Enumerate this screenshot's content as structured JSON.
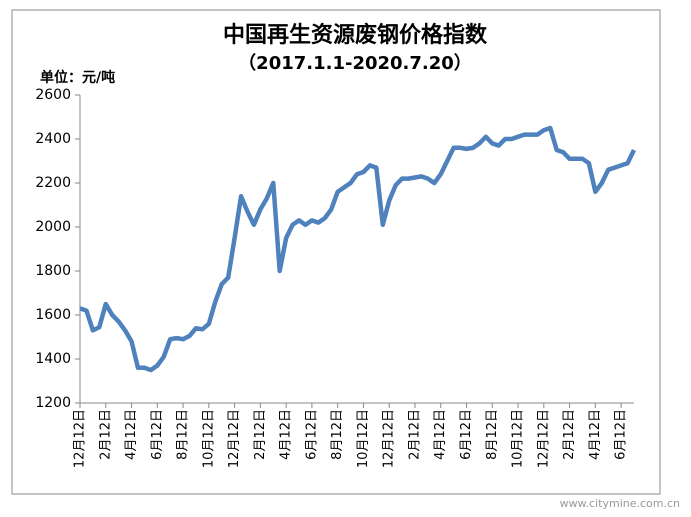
{
  "chart_data": {
    "type": "line",
    "title": "中国再生资源废钢价格指数",
    "subtitle": "（2017.1.1-2020.7.20）",
    "y_label": "单位：元/吨",
    "watermark": "www.citymine.com.cn",
    "categories": [
      "12月12日",
      null,
      null,
      null,
      "2月12日",
      null,
      null,
      null,
      "4月12日",
      null,
      null,
      null,
      "6月12日",
      null,
      null,
      null,
      "8月12日",
      null,
      null,
      null,
      "10月12日",
      null,
      null,
      null,
      "12月12日",
      null,
      null,
      null,
      "2月12日",
      null,
      null,
      null,
      "4月12日",
      null,
      null,
      null,
      "6月12日",
      null,
      null,
      null,
      "8月12日",
      null,
      null,
      null,
      "10月12日",
      null,
      null,
      null,
      "12月12日",
      null,
      null,
      null,
      "2月12日",
      null,
      null,
      null,
      "4月12日",
      null,
      null,
      null,
      "6月12日",
      null,
      null,
      null,
      "8月12日",
      null,
      null,
      null,
      "10月12日",
      null,
      null,
      null,
      "12月12日",
      null,
      null,
      null,
      "2月12日",
      null,
      null,
      null,
      "4月12日",
      null,
      null,
      null,
      "6月12日",
      null,
      null
    ],
    "series": [
      {
        "name": "废钢价格指数",
        "color": "#4f81bd",
        "values": [
          1630,
          1620,
          1530,
          1545,
          1650,
          1600,
          1570,
          1530,
          1480,
          1360,
          1360,
          1350,
          1370,
          1410,
          1490,
          1495,
          1490,
          1505,
          1540,
          1535,
          1560,
          1660,
          1740,
          1770,
          1950,
          2140,
          2070,
          2010,
          2080,
          2130,
          2200,
          1800,
          1950,
          2010,
          2030,
          2010,
          2030,
          2020,
          2040,
          2080,
          2160,
          2180,
          2200,
          2240,
          2250,
          2280,
          2270,
          2010,
          2120,
          2190,
          2220,
          2220,
          2225,
          2230,
          2220,
          2200,
          2240,
          2300,
          2360,
          2360,
          2355,
          2360,
          2380,
          2410,
          2380,
          2370,
          2400,
          2400,
          2410,
          2420,
          2420,
          2420,
          2440,
          2450,
          2350,
          2340,
          2310,
          2310,
          2310,
          2290,
          2160,
          2200,
          2260,
          2270,
          2280,
          2290,
          2350
        ]
      }
    ],
    "ylim": [
      1200,
      2600
    ],
    "yticks": [
      1200,
      1400,
      1600,
      1800,
      2000,
      2200,
      2400,
      2600
    ],
    "grid": false
  }
}
